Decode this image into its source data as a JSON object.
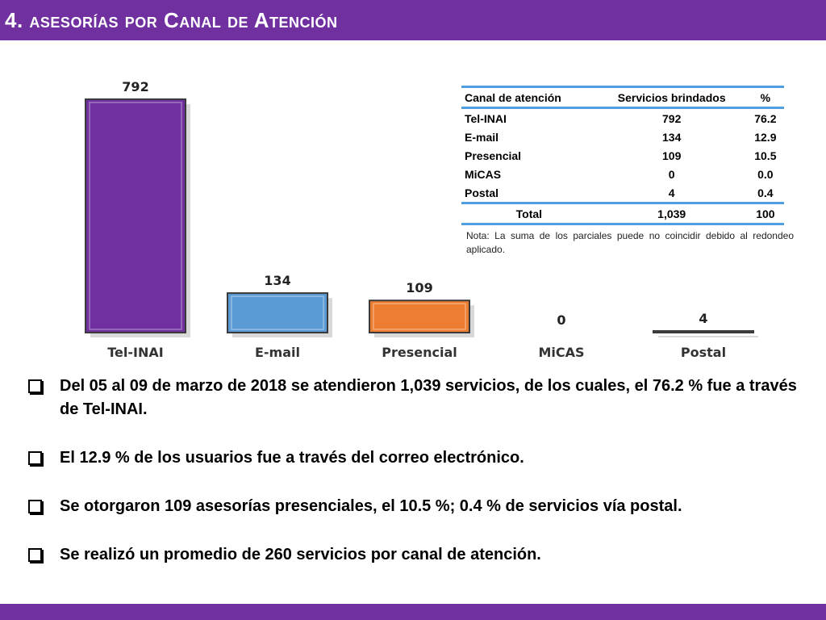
{
  "header": {
    "number": "4.",
    "word1_initial": "",
    "word1_rest": "asesorías",
    "word2": "por",
    "word3_initial": "C",
    "word3_rest": "anal",
    "word4": "de",
    "word5_initial": "A",
    "word5_rest": "tención"
  },
  "colors": {
    "brand_purple": "#7030a0",
    "table_rule": "#4f9fe0"
  },
  "chart_data": {
    "type": "bar",
    "categories": [
      "Tel-INAI",
      "E-mail",
      "Presencial",
      "MiCAS",
      "Postal"
    ],
    "values": [
      792,
      134,
      109,
      0,
      4
    ],
    "data_labels": [
      "792",
      "134",
      "109",
      "0",
      "4"
    ],
    "bar_colors": [
      "#7030a0",
      "#5b9bd5",
      "#ed7d31",
      "#a5a5a5",
      "#4472c4"
    ],
    "title": "",
    "xlabel": "",
    "ylabel": "",
    "ylim": [
      0,
      800
    ],
    "grid": false,
    "legend": "none"
  },
  "table": {
    "headers": [
      "Canal de atención",
      "Servicios brindados",
      "%"
    ],
    "rows": [
      [
        "Tel-INAI",
        "792",
        "76.2"
      ],
      [
        "E-mail",
        "134",
        "12.9"
      ],
      [
        "Presencial",
        "109",
        "10.5"
      ],
      [
        "MiCAS",
        "0",
        "0.0"
      ],
      [
        "Postal",
        "4",
        "0.4"
      ]
    ],
    "total": [
      "Total",
      "1,039",
      "100"
    ]
  },
  "note": "Nota: La suma de los parciales puede no coincidir debido al redondeo aplicado.",
  "bullets": [
    "Del 05 al 09 de marzo de 2018 se atendieron 1,039 servicios, de los cuales, el 76.2 % fue a través de Tel-INAI.",
    "El 12.9 % de los usuarios fue a través del correo electrónico.",
    "Se otorgaron 109 asesorías presenciales, el 10.5 %; 0.4 % de servicios vía postal.",
    "Se realizó un promedio de 260 servicios por canal de atención."
  ]
}
